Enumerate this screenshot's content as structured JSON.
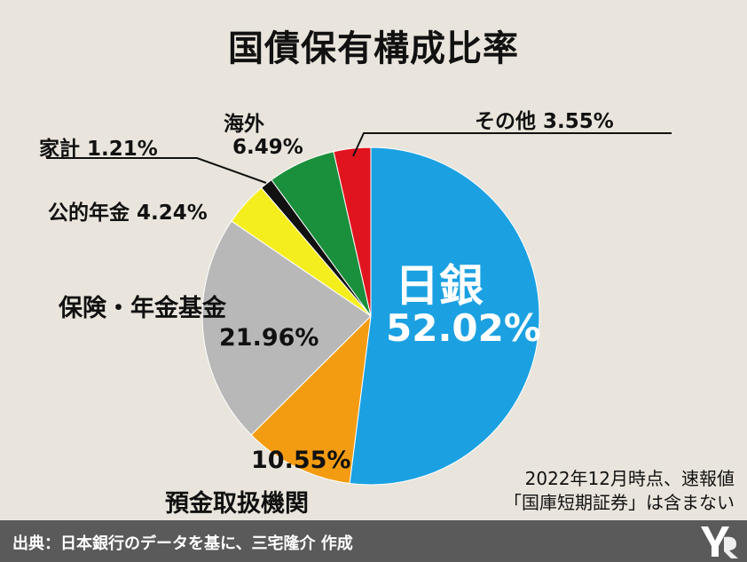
{
  "title": "国債保有構成比率",
  "chart_data": {
    "type": "pie",
    "title": "国債保有構成比率",
    "slices": [
      {
        "name": "日銀",
        "value": 52.02,
        "label": "52.02%",
        "color": "#1ba1e2"
      },
      {
        "name": "預金取扱機関",
        "value": 10.55,
        "label": "10.55%",
        "color": "#f39c12"
      },
      {
        "name": "保険・年金基金",
        "value": 21.96,
        "label": "21.96%",
        "color": "#b8b8b8"
      },
      {
        "name": "公的年金",
        "value": 4.24,
        "label": "4.24%",
        "color": "#f5ee1e"
      },
      {
        "name": "家計",
        "value": 1.21,
        "label": "1.21%",
        "color": "#111111"
      },
      {
        "name": "海外",
        "value": 6.49,
        "label": "6.49%",
        "color": "#1a8f3c"
      },
      {
        "name": "その他",
        "value": 3.55,
        "label": "3.55%",
        "color": "#e0141e"
      }
    ]
  },
  "labels": {
    "boj_name": "日銀",
    "boj_pct": "52.02%",
    "depository_pct": "10.55%",
    "depository_name": "預金取扱機関",
    "insurance_name": "保険・年金基金",
    "insurance_pct": "21.96%",
    "public_pension": "公的年金 4.24%",
    "household": "家計 1.21%",
    "overseas_name": "海外",
    "overseas_pct": "6.49%",
    "other": "その他 3.55%"
  },
  "note": {
    "line1": "2022年12月時点、速報値",
    "line2": "「国庫短期証券」は含まない"
  },
  "footer": {
    "text": "出典：日本銀行のデータを基に、三宅隆介 作成"
  }
}
